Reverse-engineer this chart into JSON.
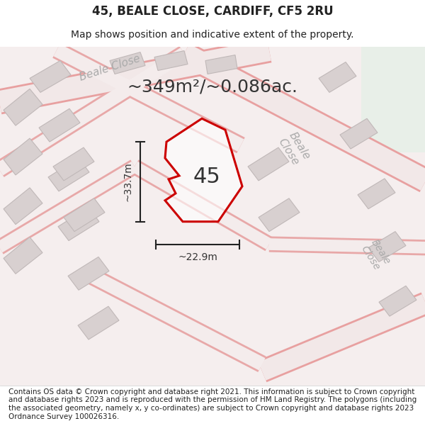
{
  "title_line1": "45, BEALE CLOSE, CARDIFF, CF5 2RU",
  "title_line2": "Map shows position and indicative extent of the property.",
  "area_label": "~349m²/~0.086ac.",
  "property_number": "45",
  "width_label": "~22.9m",
  "height_label": "~33.7m",
  "footer_text": "Contains OS data © Crown copyright and database right 2021. This information is subject to Crown copyright and database rights 2023 and is reproduced with the permission of HM Land Registry. The polygons (including the associated geometry, namely x, y co-ordinates) are subject to Crown copyright and database rights 2023 Ordnance Survey 100026316.",
  "bg_color": "#f5f0f0",
  "map_bg": "#f0e8e8",
  "road_color": "#f0a0a0",
  "building_color": "#d8d0d0",
  "property_fill": "#ffffff",
  "property_outline": "#cc0000",
  "green_area": "#e8f0e8",
  "title_fontsize": 12,
  "subtitle_fontsize": 10,
  "area_fontsize": 18,
  "property_num_fontsize": 22,
  "footer_fontsize": 7.5
}
